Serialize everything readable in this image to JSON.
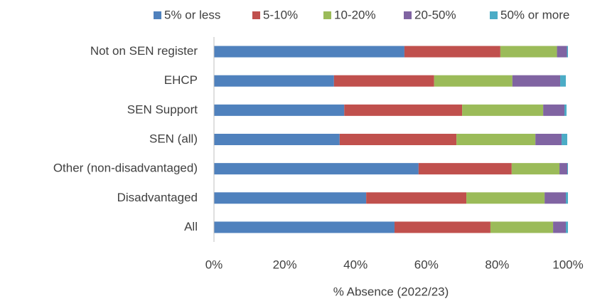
{
  "chart_data": {
    "type": "bar",
    "orientation": "horizontal",
    "stacked": true,
    "x_label": "% Absence (2022/23)",
    "categories": [
      "Not on SEN register",
      "EHCP",
      "SEN Support",
      "SEN (all)",
      "Other (non-disadvantaged)",
      "Disadvantaged",
      "All"
    ],
    "series": [
      {
        "name": "5% or less",
        "color": "#4f81bd",
        "values": [
          53.8,
          33.9,
          36.8,
          35.5,
          57.8,
          43.0,
          51.0
        ]
      },
      {
        "name": "5-10%",
        "color": "#c0504d",
        "values": [
          27.1,
          28.3,
          33.3,
          33.0,
          26.3,
          28.3,
          27.1
        ]
      },
      {
        "name": "10-20%",
        "color": "#9bbb59",
        "values": [
          16.0,
          22.1,
          22.9,
          22.3,
          13.5,
          22.1,
          17.7
        ]
      },
      {
        "name": "20-50%",
        "color": "#8064a2",
        "values": [
          2.8,
          13.5,
          6.0,
          7.4,
          2.2,
          6.0,
          3.6
        ]
      },
      {
        "name": "50% or more",
        "color": "#4bacc6",
        "values": [
          0.3,
          1.6,
          0.6,
          1.6,
          0.2,
          0.6,
          0.6
        ]
      }
    ],
    "xlim": [
      0,
      100
    ],
    "xticks": [
      {
        "value": 0,
        "label": "0%"
      },
      {
        "value": 20,
        "label": "20%"
      },
      {
        "value": 40,
        "label": "40%"
      },
      {
        "value": 60,
        "label": "60%"
      },
      {
        "value": 80,
        "label": "80%"
      },
      {
        "value": 100,
        "label": "100%"
      }
    ],
    "legend": "top"
  }
}
